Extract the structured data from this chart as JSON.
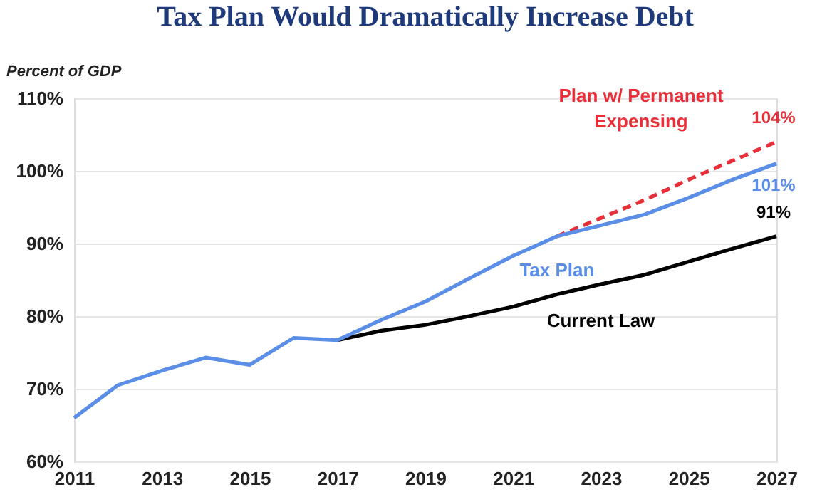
{
  "chart_data": {
    "type": "line",
    "title": "Tax Plan Would Dramatically Increase Debt",
    "ylabel": "Percent of GDP",
    "x": [
      2011,
      2012,
      2013,
      2014,
      2015,
      2016,
      2017,
      2018,
      2019,
      2020,
      2021,
      2022,
      2023,
      2024,
      2025,
      2026,
      2027
    ],
    "series": [
      {
        "name": "Current Law",
        "color": "#000000",
        "line_style": "solid",
        "values": [
          null,
          null,
          null,
          null,
          null,
          null,
          76.7,
          78,
          78.8,
          80,
          81.3,
          83,
          84.4,
          85.7,
          87.5,
          89.3,
          91
        ],
        "value_labels": [
          null,
          null,
          null,
          null,
          null,
          null,
          null,
          null,
          null,
          null,
          null,
          null,
          null,
          null,
          null,
          null,
          "91%"
        ]
      },
      {
        "name": "Plan w/ Permanent Expensing",
        "color": "#e8303a",
        "line_style": "dashed",
        "values": [
          null,
          null,
          null,
          null,
          null,
          null,
          null,
          null,
          null,
          null,
          null,
          91,
          93.5,
          96,
          98.8,
          101.4,
          104
        ],
        "value_labels": [
          null,
          null,
          null,
          null,
          null,
          null,
          null,
          null,
          null,
          null,
          null,
          null,
          null,
          null,
          null,
          null,
          "104%"
        ]
      },
      {
        "name": "Tax Plan",
        "color": "#5b8ee6",
        "line_style": "solid",
        "values": [
          66,
          70.5,
          72.5,
          74.3,
          73.3,
          77,
          76.7,
          79.5,
          82,
          85.2,
          88.3,
          91,
          92.5,
          94,
          96.3,
          98.8,
          101
        ],
        "value_labels": [
          null,
          null,
          null,
          null,
          null,
          null,
          null,
          null,
          null,
          null,
          null,
          null,
          null,
          null,
          null,
          null,
          "101%"
        ]
      }
    ],
    "xlim": [
      2011,
      2027
    ],
    "xticks": [
      2011,
      2013,
      2015,
      2017,
      2019,
      2021,
      2023,
      2025,
      2027
    ],
    "ylim": [
      60,
      110
    ],
    "yticks": [
      {
        "value": 60,
        "label": "60%"
      },
      {
        "value": 70,
        "label": "70%"
      },
      {
        "value": 80,
        "label": "80%"
      },
      {
        "value": 90,
        "label": "90%"
      },
      {
        "value": 100,
        "label": "100%"
      },
      {
        "value": 110,
        "label": "110%"
      }
    ],
    "grid": "y",
    "marker": "none"
  }
}
